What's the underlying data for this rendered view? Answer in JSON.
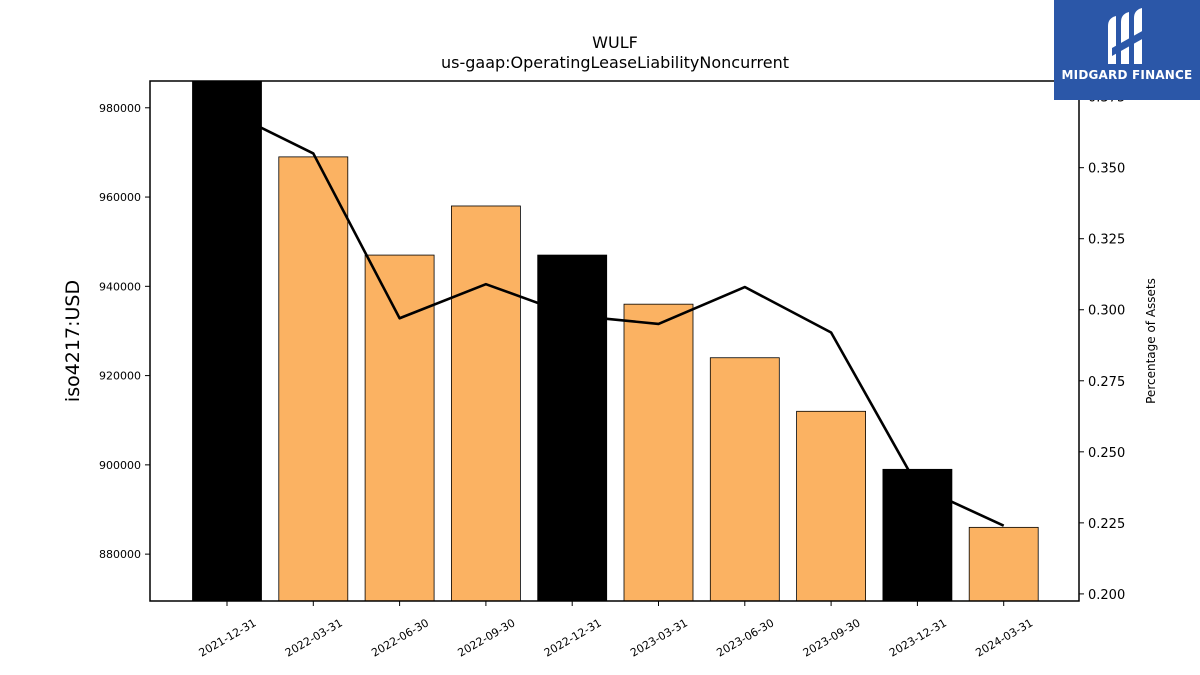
{
  "chart_data": {
    "type": "bar",
    "title": "WULF",
    "subtitle": "us-gaap:OperatingLeaseLiabilityNoncurrent",
    "ylabel": "iso4217:USD",
    "y2label": "Percentage of Assets",
    "categories": [
      "2021-12-31",
      "2022-03-31",
      "2022-06-30",
      "2022-09-30",
      "2022-12-31",
      "2023-03-31",
      "2023-06-30",
      "2023-09-30",
      "2023-12-31",
      "2024-03-31"
    ],
    "values": [
      986000,
      969000,
      947000,
      958000,
      947000,
      936000,
      924000,
      912000,
      899000,
      886000
    ],
    "bar_colors": [
      "#000000",
      "#fbb262",
      "#fbb262",
      "#fbb262",
      "#000000",
      "#fbb262",
      "#fbb262",
      "#fbb262",
      "#000000",
      "#fbb262"
    ],
    "ylim": [
      869500,
      986000
    ],
    "yticks": [
      880000,
      900000,
      920000,
      940000,
      960000,
      980000
    ],
    "line": {
      "values": [
        0.37,
        0.355,
        0.297,
        0.309,
        0.298,
        0.295,
        0.308,
        0.292,
        0.238,
        0.224
      ],
      "color": "#000000"
    },
    "y2lim": [
      0.1975,
      0.3805
    ],
    "y2ticks": [
      0.2,
      0.225,
      0.25,
      0.275,
      0.3,
      0.325,
      0.35,
      0.375
    ],
    "grid": false
  },
  "logo": {
    "text": "MIDGARD FINANCE",
    "icon": "midgard-logo-icon",
    "color": "#2b57a8"
  }
}
